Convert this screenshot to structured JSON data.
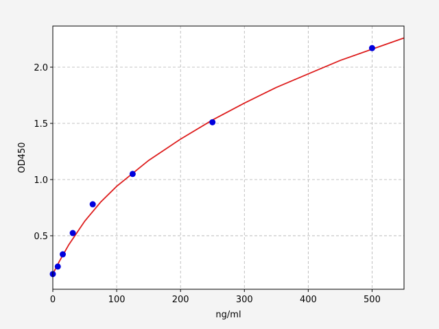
{
  "chart_data": {
    "type": "scatter",
    "xlabel": "ng/ml",
    "ylabel": "OD450",
    "series": [
      {
        "style": "line",
        "color": "#dd1c1c",
        "x": [
          0,
          10,
          25,
          50,
          75,
          100,
          150,
          200,
          250,
          300,
          350,
          400,
          450,
          500,
          550
        ],
        "values": [
          0.16,
          0.27,
          0.42,
          0.63,
          0.8,
          0.94,
          1.17,
          1.36,
          1.53,
          1.68,
          1.82,
          1.94,
          2.06,
          2.16,
          2.26
        ]
      },
      {
        "style": "points",
        "color": "#0000dd",
        "x": [
          0,
          7.8,
          15.6,
          31.25,
          62.5,
          125,
          250,
          500
        ],
        "values": [
          0.159,
          0.226,
          0.335,
          0.524,
          0.78,
          1.05,
          1.51,
          2.17
        ]
      }
    ],
    "xlim": [
      0,
      550
    ],
    "ylim": [
      0.024,
      2.366
    ],
    "xticks": [
      0,
      100,
      200,
      300,
      400,
      500
    ],
    "yticks": [
      0.5,
      {
        "value": 1,
        "label": "1.0"
      },
      1.5,
      {
        "value": 2,
        "label": "2.0"
      }
    ],
    "grid": true
  }
}
